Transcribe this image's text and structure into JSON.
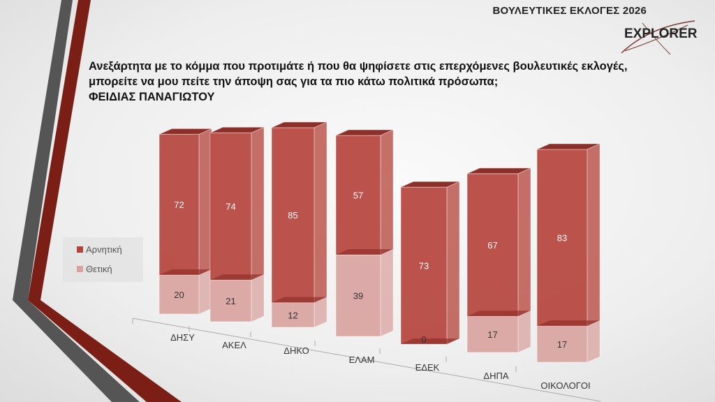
{
  "header": {
    "title": "ΒΟΥΛΕΥΤΙΚΕΣ ΕΚΛΟΓΕΣ 2026",
    "logo": "EXPLORER"
  },
  "question": {
    "line1": "Ανεξάρτητα με το κόμμα που προτιμάτε ή που θα ψηφίσετε στις επερχόμενες βουλευτικές εκλογές,",
    "line2": "μπορείτε να μου πείτε την άποψη σας για τα πιο κάτω πολιτικά πρόσωπα;",
    "line3": "ΦΕΙΔΙΑΣ ΠΑΝΑΓΙΩΤΟΥ"
  },
  "colors": {
    "negative": "#b5423a",
    "positive": "#d9a3a0",
    "accent": "#7a1e16"
  },
  "chart_data": {
    "type": "bar",
    "stacked": true,
    "three_d": true,
    "categories": [
      "ΔΗΣΥ",
      "ΑΚΕΛ",
      "ΔΗΚΟ",
      "ΕΛΑΜ",
      "ΕΔΕΚ",
      "ΔΗΠΑ",
      "ΟΙΚΟΛΟΓΟΙ"
    ],
    "series": [
      {
        "name": "Θετική",
        "values": [
          20,
          21,
          12,
          39,
          0,
          17,
          17
        ]
      },
      {
        "name": "Αρνητική",
        "values": [
          72,
          74,
          85,
          57,
          73,
          67,
          83
        ]
      }
    ],
    "legend": [
      "Αρνητική",
      "Θετική"
    ],
    "legend_position": "left",
    "title": "",
    "xlabel": "",
    "ylabel": ""
  }
}
